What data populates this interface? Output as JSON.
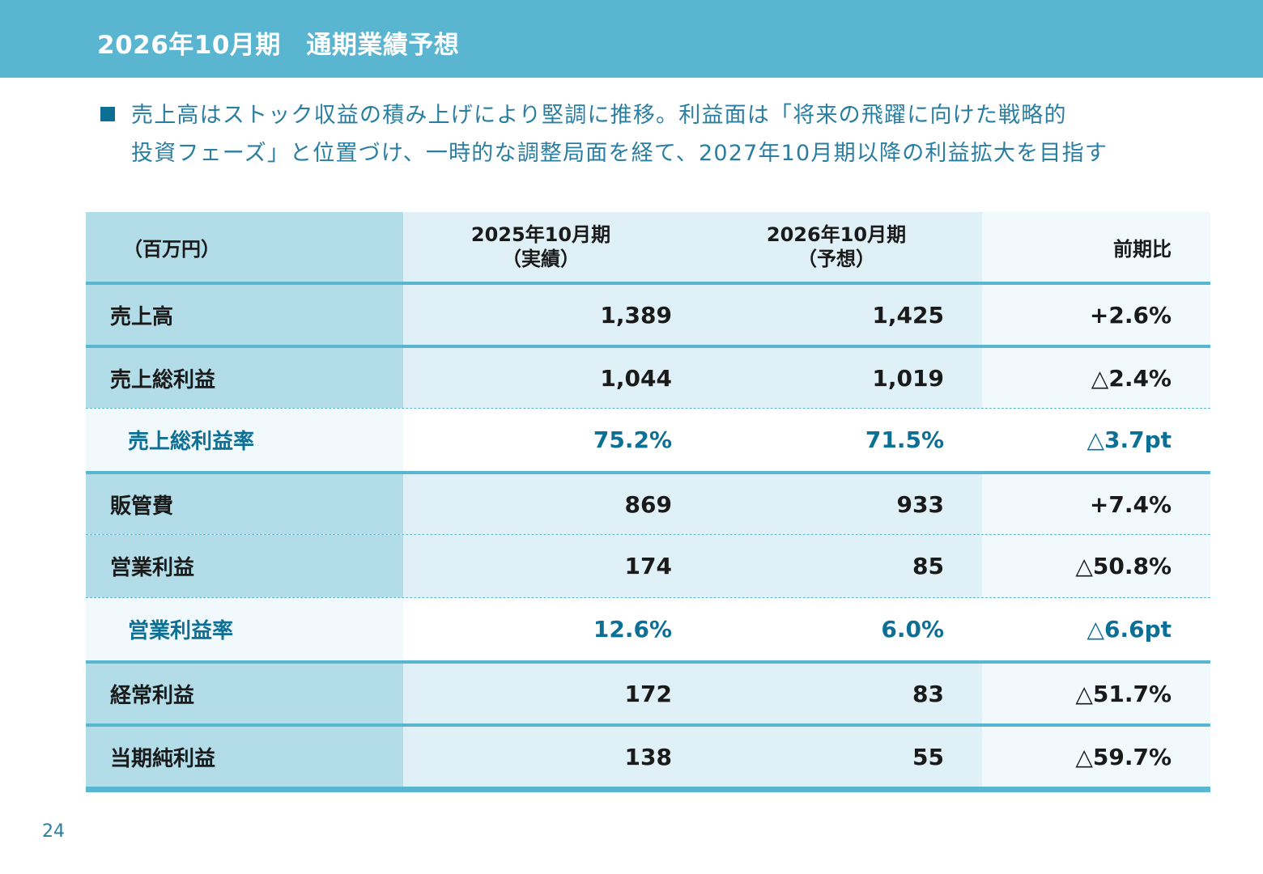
{
  "header": {
    "title": "2026年10月期　通期業績予想"
  },
  "summary": {
    "line1": "売上高はストック収益の積み上げにより堅調に推移。利益面は「将来の飛躍に向けた戦略的",
    "line2": "投資フェーズ」と位置づけ、一時的な調整局面を経て、2027年10月期以降の利益拡大を目指す"
  },
  "table": {
    "unit_label": "（百万円）",
    "columns": [
      {
        "line1": "2025年10月期",
        "line2": "（実績）"
      },
      {
        "line1": "2026年10月期",
        "line2": "（予想）"
      },
      {
        "line1": "前期比"
      }
    ],
    "rows": [
      {
        "label": "売上高",
        "fy2025": "1,389",
        "fy2026": "1,425",
        "yoy": "+2.6%"
      },
      {
        "label": "売上総利益",
        "fy2025": "1,044",
        "fy2026": "1,019",
        "yoy": "△2.4%"
      },
      {
        "label": "売上総利益率",
        "fy2025": "75.2%",
        "fy2026": "71.5%",
        "yoy": "△3.7pt"
      },
      {
        "label": "販管費",
        "fy2025": "869",
        "fy2026": "933",
        "yoy": "+7.4%"
      },
      {
        "label": "営業利益",
        "fy2025": "174",
        "fy2026": "85",
        "yoy": "△50.8%"
      },
      {
        "label": "営業利益率",
        "fy2025": "12.6%",
        "fy2026": "6.0%",
        "yoy": "△6.6pt"
      },
      {
        "label": "経常利益",
        "fy2025": "172",
        "fy2026": "83",
        "yoy": "△51.7%"
      },
      {
        "label": "当期純利益",
        "fy2025": "138",
        "fy2026": "55",
        "yoy": "△59.7%"
      }
    ]
  },
  "footer": {
    "page_number": "24"
  },
  "colors": {
    "header_bar": "#5ab5d1",
    "accent_dark": "#0e6f95",
    "text_blue": "#2a7ea2",
    "label_column": "#b1dce8",
    "data_column": "#dff0f6"
  }
}
